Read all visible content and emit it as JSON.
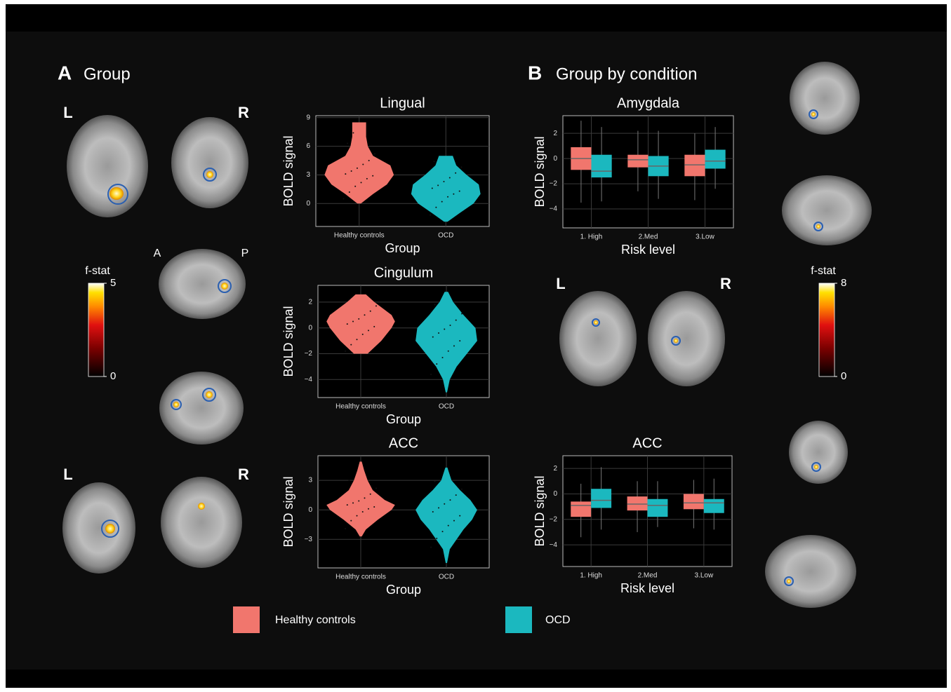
{
  "figure": {
    "panel_a": "A",
    "panel_a_title": "Group",
    "panel_b": "B",
    "panel_b_title": "Group by condition",
    "left_top_l": "L",
    "left_top_r": "R",
    "anterior": "A",
    "posterior": "P",
    "left_bottom_l": "L",
    "left_bottom_r": "R",
    "right_l": "L",
    "right_r": "R",
    "colorbars": [
      {
        "label": "f-stat",
        "lim": [
          0,
          5
        ],
        "ticks": [
          0,
          5
        ]
      },
      {
        "label": "f-stat",
        "lim": [
          0,
          8
        ],
        "ticks": [
          0,
          8
        ]
      }
    ]
  },
  "chart_data": [
    {
      "type": "violin",
      "title": "Lingual",
      "x_label": "Group",
      "y_label": "BOLD signal",
      "categories": [
        "Healthy controls",
        "OCD"
      ],
      "ylim": [
        -2.4,
        9.2
      ],
      "yticks": [
        0,
        3,
        6,
        9
      ],
      "grid": true,
      "series": [
        {
          "name": "Healthy controls",
          "color": "#f1766d",
          "levels": [
            0,
            1,
            2,
            3,
            4,
            5,
            6,
            7,
            8,
            8.5
          ],
          "density": [
            0.05,
            0.4,
            0.8,
            1,
            0.9,
            0.4,
            0.25,
            0.2,
            0.2,
            0.2
          ],
          "points": [
            0.5,
            1.2,
            1.8,
            2.2,
            2.6,
            2.9,
            3.1,
            3.4,
            3.7,
            4.1,
            4.5,
            5.2,
            6.3,
            7.4
          ]
        },
        {
          "name": "OCD",
          "color": "#1bb8bf",
          "levels": [
            -1.9,
            -1,
            0,
            1,
            2,
            3,
            4,
            5
          ],
          "density": [
            0.05,
            0.4,
            0.8,
            1,
            0.95,
            0.6,
            0.3,
            0.2
          ],
          "points": [
            -1.2,
            -0.4,
            0.2,
            0.7,
            1.0,
            1.3,
            1.6,
            1.9,
            2.3,
            2.7,
            3.2,
            3.8,
            4.4
          ]
        }
      ]
    },
    {
      "type": "violin",
      "title": "Cingulum",
      "x_label": "Group",
      "y_label": "BOLD signal",
      "categories": [
        "Healthy controls",
        "OCD"
      ],
      "ylim": [
        -5.4,
        3.3
      ],
      "yticks": [
        {
          "value": -4,
          "label": "−4"
        },
        {
          "value": -2,
          "label": "−2"
        },
        0,
        2
      ],
      "grid": true,
      "series": [
        {
          "name": "Healthy controls",
          "color": "#f1766d",
          "levels": [
            -2,
            -1,
            0,
            0.5,
            1,
            2,
            2.6
          ],
          "density": [
            0.2,
            0.6,
            0.9,
            1,
            0.9,
            0.4,
            0.15
          ],
          "points": [
            -1.8,
            -1.3,
            -0.9,
            -0.5,
            -0.2,
            0.1,
            0.3,
            0.5,
            0.7,
            1.0,
            1.3,
            1.7,
            2.2
          ]
        },
        {
          "name": "OCD",
          "color": "#1bb8bf",
          "levels": [
            -5,
            -4,
            -3,
            -2,
            -1,
            0,
            1,
            2,
            2.8
          ],
          "density": [
            0.02,
            0.1,
            0.3,
            0.6,
            0.9,
            0.85,
            0.5,
            0.2,
            0.05
          ],
          "points": [
            -3.6,
            -2.8,
            -2.3,
            -1.8,
            -1.4,
            -1.0,
            -0.7,
            -0.4,
            -0.1,
            0.2,
            0.6,
            1.1,
            1.8
          ]
        }
      ]
    },
    {
      "type": "violin",
      "title": "ACC",
      "x_label": "Group",
      "y_label": "BOLD signal",
      "categories": [
        "Healthy controls",
        "OCD"
      ],
      "ylim": [
        -5.9,
        5.5
      ],
      "yticks": [
        {
          "value": -3,
          "label": "−3"
        },
        0,
        3
      ],
      "grid": true,
      "series": [
        {
          "name": "Healthy controls",
          "color": "#f1766d",
          "levels": [
            -2.7,
            -2,
            -1,
            0,
            0.5,
            1,
            2,
            3,
            4,
            4.9
          ],
          "density": [
            0.03,
            0.15,
            0.5,
            0.9,
            1,
            0.7,
            0.35,
            0.2,
            0.1,
            0.03
          ],
          "points": [
            -1.9,
            -1.1,
            -0.6,
            -0.2,
            0.1,
            0.3,
            0.5,
            0.7,
            0.9,
            1.2,
            1.6,
            2.2,
            3.0
          ]
        },
        {
          "name": "OCD",
          "color": "#1bb8bf",
          "levels": [
            -5.4,
            -4,
            -3,
            -2,
            -1,
            0,
            1,
            2,
            3,
            4.3
          ],
          "density": [
            0.02,
            0.1,
            0.3,
            0.5,
            0.75,
            0.9,
            0.7,
            0.4,
            0.15,
            0.03
          ],
          "points": [
            -3.8,
            -2.9,
            -2.2,
            -1.6,
            -1.1,
            -0.6,
            -0.2,
            0.2,
            0.6,
            1.0,
            1.5,
            2.1,
            2.9
          ]
        }
      ]
    },
    {
      "type": "box",
      "title": "Amygdala",
      "x_label": "Risk level",
      "y_label": "BOLD signal",
      "categories": [
        "1. High",
        "2.Med",
        "3.Low"
      ],
      "ylim": [
        -5.5,
        3.4
      ],
      "yticks": [
        {
          "value": -4,
          "label": "−4"
        },
        {
          "value": -2,
          "label": "−2"
        },
        0,
        2
      ],
      "grid": true,
      "series": [
        {
          "name": "Healthy controls",
          "color": "#f1766d",
          "q1": [
            -0.9,
            -0.7,
            -1.4
          ],
          "median": [
            0,
            -0.1,
            -0.5
          ],
          "q3": [
            0.9,
            0.3,
            0.3
          ],
          "whisker_low": [
            -3.5,
            -2.6,
            -3.3
          ],
          "whisker_high": [
            3,
            2.2,
            2
          ]
        },
        {
          "name": "OCD",
          "color": "#1bb8bf",
          "q1": [
            -1.5,
            -1.4,
            -0.8
          ],
          "median": [
            -1,
            -0.6,
            -0.2
          ],
          "q3": [
            0.3,
            0.2,
            0.7
          ],
          "whisker_low": [
            -3.4,
            -3.2,
            -2.4
          ],
          "whisker_high": [
            2.5,
            2.2,
            2.5
          ]
        }
      ]
    },
    {
      "type": "box",
      "title": "ACC",
      "x_label": "Risk level",
      "y_label": "BOLD signal",
      "categories": [
        "1. High",
        "2.Med",
        "3.Low"
      ],
      "ylim": [
        -5.7,
        3
      ],
      "yticks": [
        {
          "value": -4,
          "label": "−4"
        },
        {
          "value": -2,
          "label": "−2"
        },
        0,
        2
      ],
      "grid": true,
      "series": [
        {
          "name": "Healthy controls",
          "color": "#f1766d",
          "q1": [
            -1.8,
            -1.3,
            -1.2
          ],
          "median": [
            -0.9,
            -0.8,
            -0.7
          ],
          "q3": [
            -0.6,
            -0.2,
            0
          ],
          "whisker_low": [
            -3.4,
            -3,
            -2.7
          ],
          "whisker_high": [
            0.8,
            1,
            1.1
          ]
        },
        {
          "name": "OCD",
          "color": "#1bb8bf",
          "q1": [
            -1.1,
            -1.8,
            -1.5
          ],
          "median": [
            -0.5,
            -0.9,
            -0.7
          ],
          "q3": [
            0.4,
            -0.4,
            -0.4
          ],
          "whisker_low": [
            -2.8,
            -2.6,
            -2.8
          ],
          "whisker_high": [
            2.1,
            1,
            1.2
          ]
        }
      ]
    }
  ]
}
